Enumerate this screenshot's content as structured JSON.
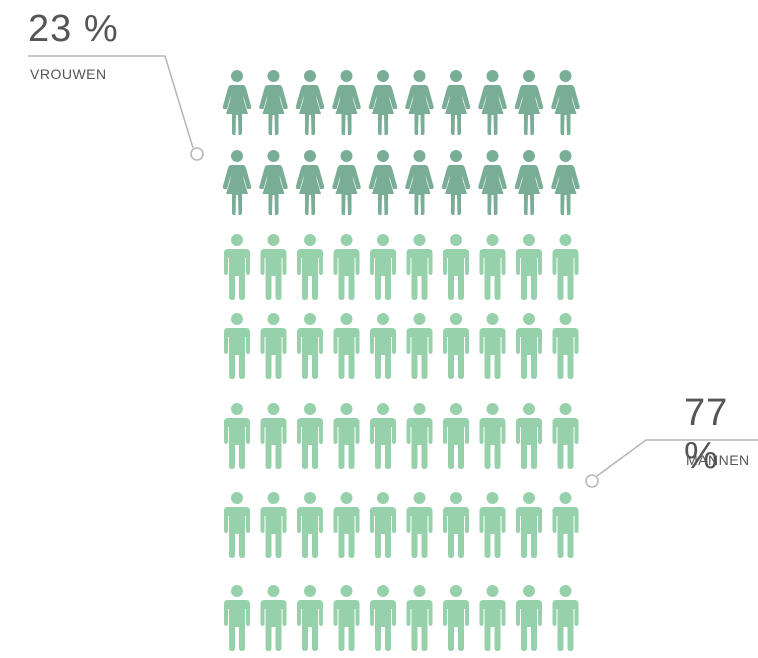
{
  "chart_data": {
    "type": "pictogram",
    "series": [
      {
        "name": "VROUWEN",
        "percent_label": "23 %",
        "value": 23,
        "icon": "woman-icon",
        "color": "#7aad96"
      },
      {
        "name": "MANNEN",
        "percent_label": "77 %",
        "value": 77,
        "icon": "man-icon",
        "color": "#97d1ab"
      }
    ],
    "icons_per_row": 10,
    "rows": [
      {
        "icon": "woman-icon",
        "count": 10
      },
      {
        "icon": "woman-icon",
        "count": 10
      },
      {
        "icon": "man-icon",
        "count": 10
      },
      {
        "icon": "man-icon",
        "count": 10
      },
      {
        "icon": "man-icon",
        "count": 10
      },
      {
        "icon": "man-icon",
        "count": 10
      },
      {
        "icon": "man-icon",
        "count": 10
      }
    ],
    "callout_color": "#b5b5b5"
  }
}
